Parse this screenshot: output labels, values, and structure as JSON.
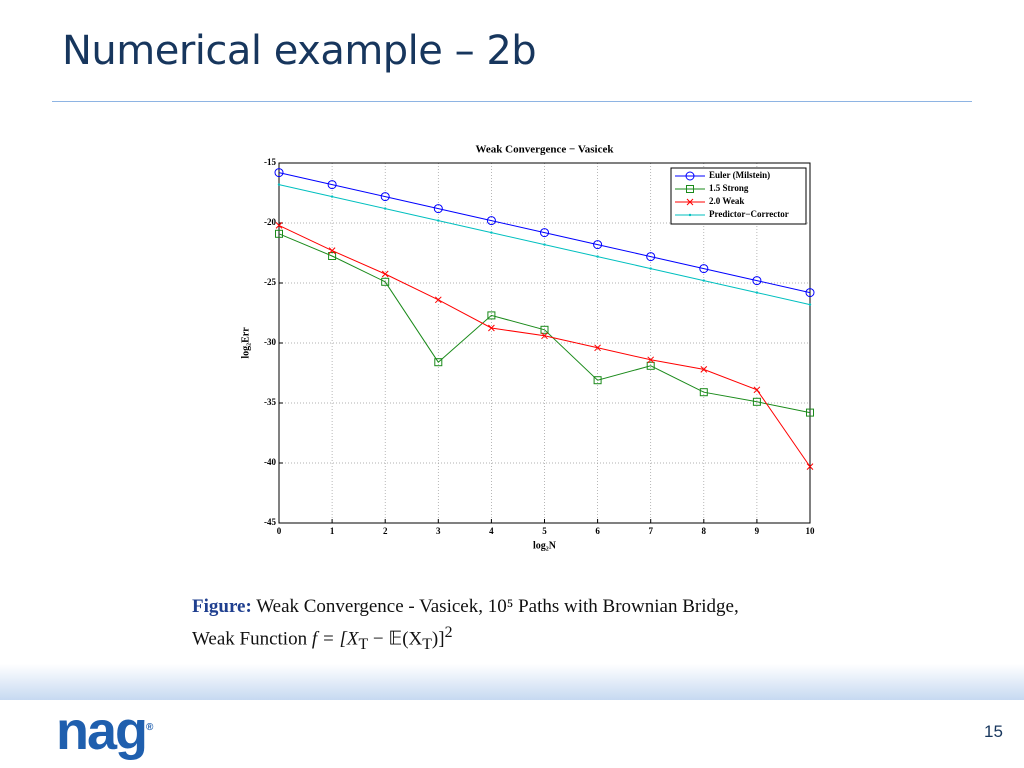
{
  "slide": {
    "title": "Numerical example – 2b",
    "page": "15",
    "logo": "nag",
    "caption": {
      "label": "Figure:",
      "line1": "Weak Convergence - Vasicek, 10⁵ Paths with Brownian Bridge,",
      "line2": "Weak Function",
      "formula": [
        "f = [X",
        "T",
        " − 𝔼(X",
        "T",
        ")]",
        "2"
      ]
    }
  },
  "chart_data": {
    "type": "line",
    "title": "Weak Convergence − Vasicek",
    "x_label": "log₂N",
    "y_label": "log₂Err",
    "x": [
      0,
      1,
      2,
      3,
      4,
      5,
      6,
      7,
      8,
      9,
      10
    ],
    "series": [
      {
        "name": "Euler (Milstein)",
        "color": "#0000ff",
        "marker": "circle",
        "values": [
          -15.8,
          -16.8,
          -17.8,
          -18.8,
          -19.8,
          -20.8,
          -21.8,
          -22.8,
          -23.8,
          -24.8,
          -25.8
        ]
      },
      {
        "name": "1.5 Strong",
        "color": "#1a8a1a",
        "marker": "square",
        "values": [
          -20.9,
          -22.75,
          -24.9,
          -31.6,
          -27.7,
          -28.9,
          -33.1,
          -31.9,
          -34.1,
          -34.9,
          -35.8
        ]
      },
      {
        "name": "2.0 Weak",
        "color": "#ff0000",
        "marker": "x",
        "values": [
          -20.2,
          -22.3,
          -24.25,
          -26.4,
          -28.75,
          -29.4,
          -30.4,
          -31.4,
          -32.2,
          -33.9,
          -40.3
        ]
      },
      {
        "name": "Predictor−Corrector",
        "color": "#00bfbf",
        "marker": "point",
        "values": [
          -16.8,
          -17.8,
          -18.8,
          -19.8,
          -20.8,
          -21.8,
          -22.8,
          -23.8,
          -24.8,
          -25.8,
          -26.8
        ]
      }
    ],
    "xlim": [
      0,
      10
    ],
    "xticks": [
      0,
      1,
      2,
      3,
      4,
      5,
      6,
      7,
      8,
      9,
      10
    ],
    "ylim": [
      -45,
      -15
    ],
    "yticks": [
      -15,
      -20,
      -25,
      -30,
      -35,
      -40,
      -45
    ],
    "grid": true,
    "legend": "upper right"
  }
}
